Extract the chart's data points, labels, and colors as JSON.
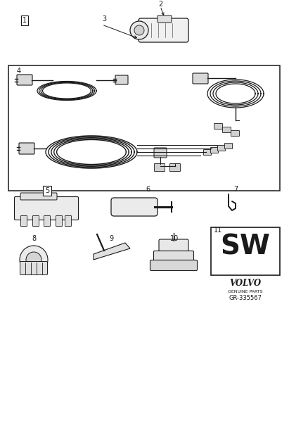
{
  "bg_color": "#ffffff",
  "line_color": "#1a1a1a",
  "sw_label": "SW",
  "sw_number": "11",
  "volvo_text": "VOLVO",
  "genuine_parts": "GENUINE PARTS",
  "drawing_number": "GR-335567",
  "fig_width": 4.11,
  "fig_height": 6.01
}
